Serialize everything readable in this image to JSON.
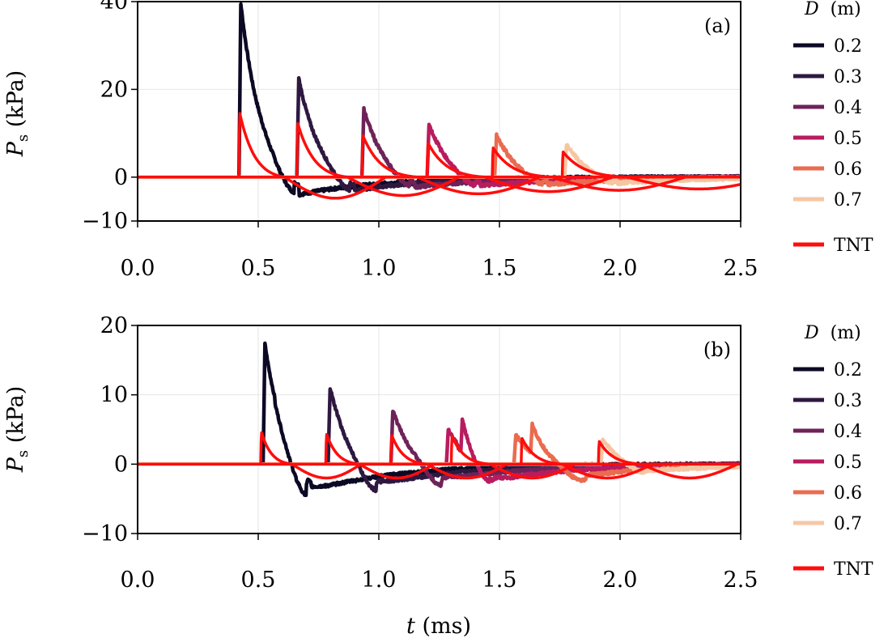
{
  "figure": {
    "xlabel_var": "t",
    "xlabel_unit": " (ms)",
    "ylabel_var": "P",
    "ylabel_sub": "s",
    "ylabel_unit": " (kPa)"
  },
  "legend": {
    "title_var": "D",
    "title_unit": "(m)",
    "entries": [
      {
        "label": "0.2",
        "color": "#0b0924"
      },
      {
        "label": "0.3",
        "color": "#2e1840"
      },
      {
        "label": "0.4",
        "color": "#6e2358"
      },
      {
        "label": "0.5",
        "color": "#b81c5e"
      },
      {
        "label": "0.6",
        "color": "#ea6b4f"
      },
      {
        "label": "0.7",
        "color": "#f6c6a3"
      }
    ],
    "tnt_label": "TNT",
    "tnt_color": "#ff0d0d"
  },
  "chart_data": [
    {
      "type": "line",
      "panel": "(a)",
      "xlim": [
        0.0,
        2.5
      ],
      "ylim": [
        -10,
        40
      ],
      "xticks": [
        "0.0",
        "0.5",
        "1.0",
        "1.5",
        "2.0",
        "2.5"
      ],
      "yticks": [
        "40",
        "20",
        "0",
        "−10"
      ],
      "ytick_values": [
        40,
        20,
        0,
        -10
      ],
      "grid": true,
      "legend_position": "right",
      "series": [
        {
          "name": "0.2",
          "t_arrival": 0.42,
          "peak": 39.5,
          "decay": 0.08,
          "neg_min": -6.0,
          "neg_time": 0.65
        },
        {
          "name": "0.3",
          "t_arrival": 0.66,
          "peak": 22.5,
          "decay": 0.08,
          "neg_min": -4.5,
          "neg_time": 0.88
        },
        {
          "name": "0.4",
          "t_arrival": 0.93,
          "peak": 15.5,
          "decay": 0.08,
          "neg_min": -3.5,
          "neg_time": 1.13
        },
        {
          "name": "0.5",
          "t_arrival": 1.2,
          "peak": 12.0,
          "decay": 0.08,
          "neg_min": -3.0,
          "neg_time": 1.4
        },
        {
          "name": "0.6",
          "t_arrival": 1.48,
          "peak": 9.5,
          "decay": 0.08,
          "neg_min": -2.5,
          "neg_time": 1.68
        },
        {
          "name": "0.7",
          "t_arrival": 1.77,
          "peak": 7.5,
          "decay": 0.08,
          "neg_min": -2.0,
          "neg_time": 1.97
        }
      ],
      "tnt": [
        {
          "t_arrival": 0.42,
          "peak": 15.5,
          "t_plus": 0.19,
          "neg_min": -4.8
        },
        {
          "t_arrival": 0.66,
          "peak": 13.0,
          "t_plus": 0.21,
          "neg_min": -4.2
        },
        {
          "t_arrival": 0.93,
          "peak": 10.0,
          "t_plus": 0.23,
          "neg_min": -3.8
        },
        {
          "t_arrival": 1.2,
          "peak": 8.2,
          "t_plus": 0.24,
          "neg_min": -3.3
        },
        {
          "t_arrival": 1.47,
          "peak": 7.0,
          "t_plus": 0.25,
          "neg_min": -3.0
        },
        {
          "t_arrival": 1.76,
          "peak": 6.0,
          "t_plus": 0.27,
          "neg_min": -2.7
        }
      ]
    },
    {
      "type": "line",
      "panel": "(b)",
      "xlim": [
        0.0,
        2.5
      ],
      "ylim": [
        -10,
        20
      ],
      "xticks": [
        "0.0",
        "0.5",
        "1.0",
        "1.5",
        "2.0",
        "2.5"
      ],
      "yticks": [
        "20",
        "10",
        "0",
        "−10"
      ],
      "ytick_values": [
        20,
        10,
        0,
        -10
      ],
      "grid": true,
      "legend_position": "right",
      "series": [
        {
          "name": "0.2",
          "t_arrival": 0.52,
          "peak": 17.3,
          "decay": 0.07,
          "neg_min": -6.0,
          "neg_time": 0.7,
          "second_t": 0.7,
          "second_peak": 1.0
        },
        {
          "name": "0.3",
          "t_arrival": 0.79,
          "peak": 11.0,
          "decay": 0.07,
          "neg_min": -4.5,
          "neg_time": 0.99,
          "second_t": 0.99,
          "second_peak": 0.8
        },
        {
          "name": "0.4",
          "t_arrival": 1.05,
          "peak": 7.8,
          "decay": 0.07,
          "neg_min": -3.5,
          "neg_time": 1.26,
          "second_t": 1.26,
          "second_peak": 0.8
        },
        {
          "name": "0.5",
          "t_arrival": 1.28,
          "peak": 5.0,
          "decay": 0.07,
          "neg_min": -3.5,
          "neg_time": 1.46,
          "second_t": 1.34,
          "second_peak": 5.0
        },
        {
          "name": "0.6",
          "t_arrival": 1.56,
          "peak": 4.3,
          "decay": 0.07,
          "neg_min": -2.5,
          "neg_time": 1.84,
          "second_t": 1.63,
          "second_peak": 4.3
        },
        {
          "name": "0.7",
          "t_arrival": 1.92,
          "peak": 3.5,
          "decay": 0.07,
          "neg_min": -1.5,
          "neg_time": 2.1,
          "second_t": 0.0,
          "second_peak": 0.0
        }
      ],
      "tnt": [
        {
          "t_arrival": 0.51,
          "peak": 5.0,
          "t_plus": 0.13,
          "neg_min": -2.0
        },
        {
          "t_arrival": 0.78,
          "peak": 4.7,
          "t_plus": 0.14,
          "neg_min": -2.0
        },
        {
          "t_arrival": 1.05,
          "peak": 4.5,
          "t_plus": 0.15,
          "neg_min": -2.0
        },
        {
          "t_arrival": 1.3,
          "peak": 4.3,
          "t_plus": 0.16,
          "neg_min": -2.0
        },
        {
          "t_arrival": 1.59,
          "peak": 4.0,
          "t_plus": 0.17,
          "neg_min": -2.0
        },
        {
          "t_arrival": 1.91,
          "peak": 3.5,
          "t_plus": 0.18,
          "neg_min": -2.0
        }
      ]
    }
  ]
}
